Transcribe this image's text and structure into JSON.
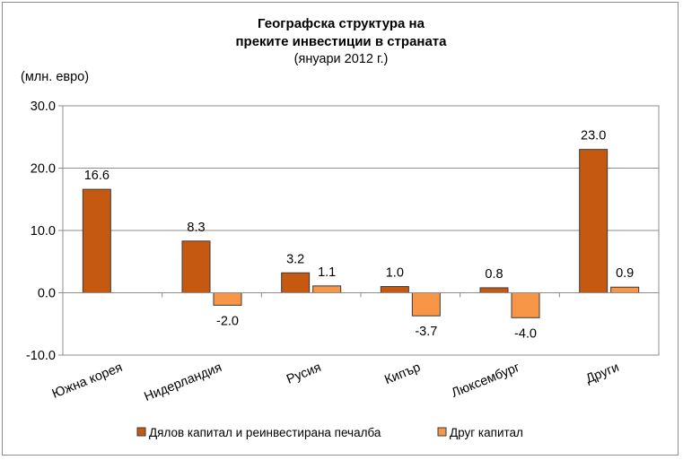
{
  "chart_data": {
    "type": "bar",
    "title_line1": "Географска структура  на",
    "title_line2": "преките инвестиции  в страната",
    "subtitle": "(януари 2012 г.)",
    "ylabel": "(млн. евро)",
    "ylim": [
      -10,
      30
    ],
    "yticks": [
      30,
      20,
      10,
      0,
      -10
    ],
    "ytick_labels": [
      "30.0",
      "20.0",
      "10.0",
      "0.0",
      "-10.0"
    ],
    "categories": [
      "Южна корея",
      "Нидерландия",
      "Русия",
      "Кипър",
      "Люксембург",
      "Други"
    ],
    "series": [
      {
        "name": "Дялов капитал и реинвестирана печалба",
        "color": "#c65911",
        "values": [
          16.6,
          8.3,
          3.2,
          1.0,
          0.8,
          23.0
        ],
        "labels": [
          "16.6",
          "8.3",
          "3.2",
          "1.0",
          "0.8",
          "23.0"
        ]
      },
      {
        "name": "Друг капитал",
        "color": "#f79646",
        "values": [
          null,
          -2.0,
          1.1,
          -3.7,
          -4.0,
          0.9
        ],
        "labels": [
          "",
          "-2.0",
          "1.1",
          "-3.7",
          "-4.0",
          "0.9"
        ]
      }
    ],
    "grid": true,
    "legend_position": "bottom"
  }
}
